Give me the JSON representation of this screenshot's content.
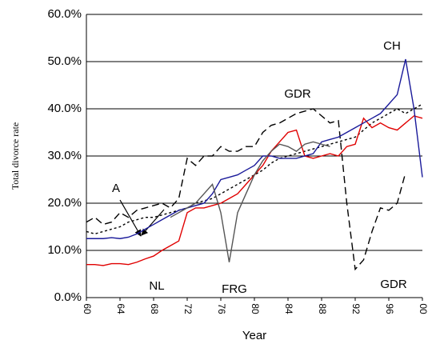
{
  "chart_data": {
    "type": "line",
    "x_label": "Year",
    "y_label": "Total divorce rate",
    "x": [
      1960,
      1961,
      1962,
      1963,
      1964,
      1965,
      1966,
      1967,
      1968,
      1969,
      1970,
      1971,
      1972,
      1973,
      1974,
      1975,
      1976,
      1977,
      1978,
      1979,
      1980,
      1981,
      1982,
      1983,
      1984,
      1985,
      1986,
      1987,
      1988,
      1989,
      1990,
      1991,
      1992,
      1993,
      1994,
      1995,
      1996,
      1997,
      1998,
      1999,
      2000
    ],
    "xlim": [
      1960,
      2000
    ],
    "xticks": [
      {
        "value": 1960,
        "label": "60"
      },
      {
        "value": 1964,
        "label": "64"
      },
      {
        "value": 1968,
        "label": "68"
      },
      {
        "value": 1972,
        "label": "72"
      },
      {
        "value": 1976,
        "label": "76"
      },
      {
        "value": 1980,
        "label": "80"
      },
      {
        "value": 1984,
        "label": "84"
      },
      {
        "value": 1988,
        "label": "88"
      },
      {
        "value": 1992,
        "label": "92"
      },
      {
        "value": 1996,
        "label": "96"
      },
      {
        "value": 2000,
        "label": "00"
      }
    ],
    "ylim": [
      0,
      60
    ],
    "yticks": [
      {
        "value": 0,
        "label": "0.0%"
      },
      {
        "value": 10,
        "label": "10.0%"
      },
      {
        "value": 20,
        "label": "20.0%"
      },
      {
        "value": 30,
        "label": "30.0%"
      },
      {
        "value": 40,
        "label": "40.0%"
      },
      {
        "value": 50,
        "label": "50.0%"
      },
      {
        "value": 60,
        "label": "60.0%"
      }
    ],
    "grid": true,
    "annotations": [
      "CH",
      "GDR",
      "A",
      "NL",
      "FRG",
      "GDR"
    ],
    "series": [
      {
        "color": "#000000",
        "dash": "9 5",
        "values": [
          16,
          17,
          15.5,
          16,
          18,
          17,
          18.5,
          19,
          19.5,
          20,
          19,
          21,
          29.5,
          28,
          30,
          30,
          32,
          31,
          31,
          32,
          32,
          35,
          36.5,
          37,
          38,
          39,
          39.5,
          40,
          38.5,
          37,
          37.5,
          20,
          6,
          8,
          14,
          19,
          18.5,
          20,
          26.5,
          null,
          null
        ]
      },
      {
        "color": "#000000",
        "dash": "3 3",
        "values": [
          14,
          13.5,
          14,
          14.5,
          15,
          16,
          16.5,
          17,
          17,
          17.5,
          18,
          18.5,
          19,
          20,
          20.5,
          21,
          22,
          23,
          24,
          25,
          26,
          27,
          28.5,
          29.5,
          30,
          30.5,
          31,
          31.5,
          32,
          32.5,
          33,
          33.5,
          34,
          35.5,
          37,
          38,
          39,
          40,
          39,
          40,
          41
        ]
      },
      {
        "color": "#e00000",
        "dash": "",
        "values": [
          7,
          7,
          6.8,
          7.2,
          7.2,
          7,
          7.5,
          8.2,
          8.8,
          10,
          11,
          12,
          18,
          19,
          19,
          19.5,
          20,
          21,
          22,
          24,
          26,
          28,
          31,
          33,
          35,
          35.5,
          30,
          29.5,
          30,
          30.5,
          30,
          32,
          32.5,
          38,
          36,
          37,
          36,
          35.5,
          37,
          38.5,
          38
        ]
      },
      {
        "color": "#1a1a9a",
        "dash": "",
        "values": [
          12.5,
          12.5,
          12.5,
          12.7,
          12.5,
          12.8,
          13.5,
          14.5,
          15.5,
          16.5,
          17.5,
          18.5,
          19,
          19.5,
          20,
          22,
          25,
          25.5,
          26,
          27,
          28,
          30,
          30,
          29.5,
          29.5,
          29.5,
          30,
          30.5,
          33,
          33.5,
          34,
          35,
          36,
          37,
          38,
          39,
          41,
          43,
          50.5,
          40,
          25.5
        ]
      },
      {
        "color": "#555555",
        "dash": "",
        "values": [
          null,
          null,
          null,
          null,
          null,
          null,
          null,
          null,
          null,
          null,
          17,
          18,
          19,
          20,
          22,
          24,
          18,
          7.5,
          18,
          22,
          26,
          29,
          31,
          32.5,
          32,
          31,
          32.5,
          33,
          32.5,
          32,
          null,
          null,
          null,
          null,
          null,
          null,
          null,
          null,
          null,
          null,
          null
        ]
      }
    ]
  }
}
